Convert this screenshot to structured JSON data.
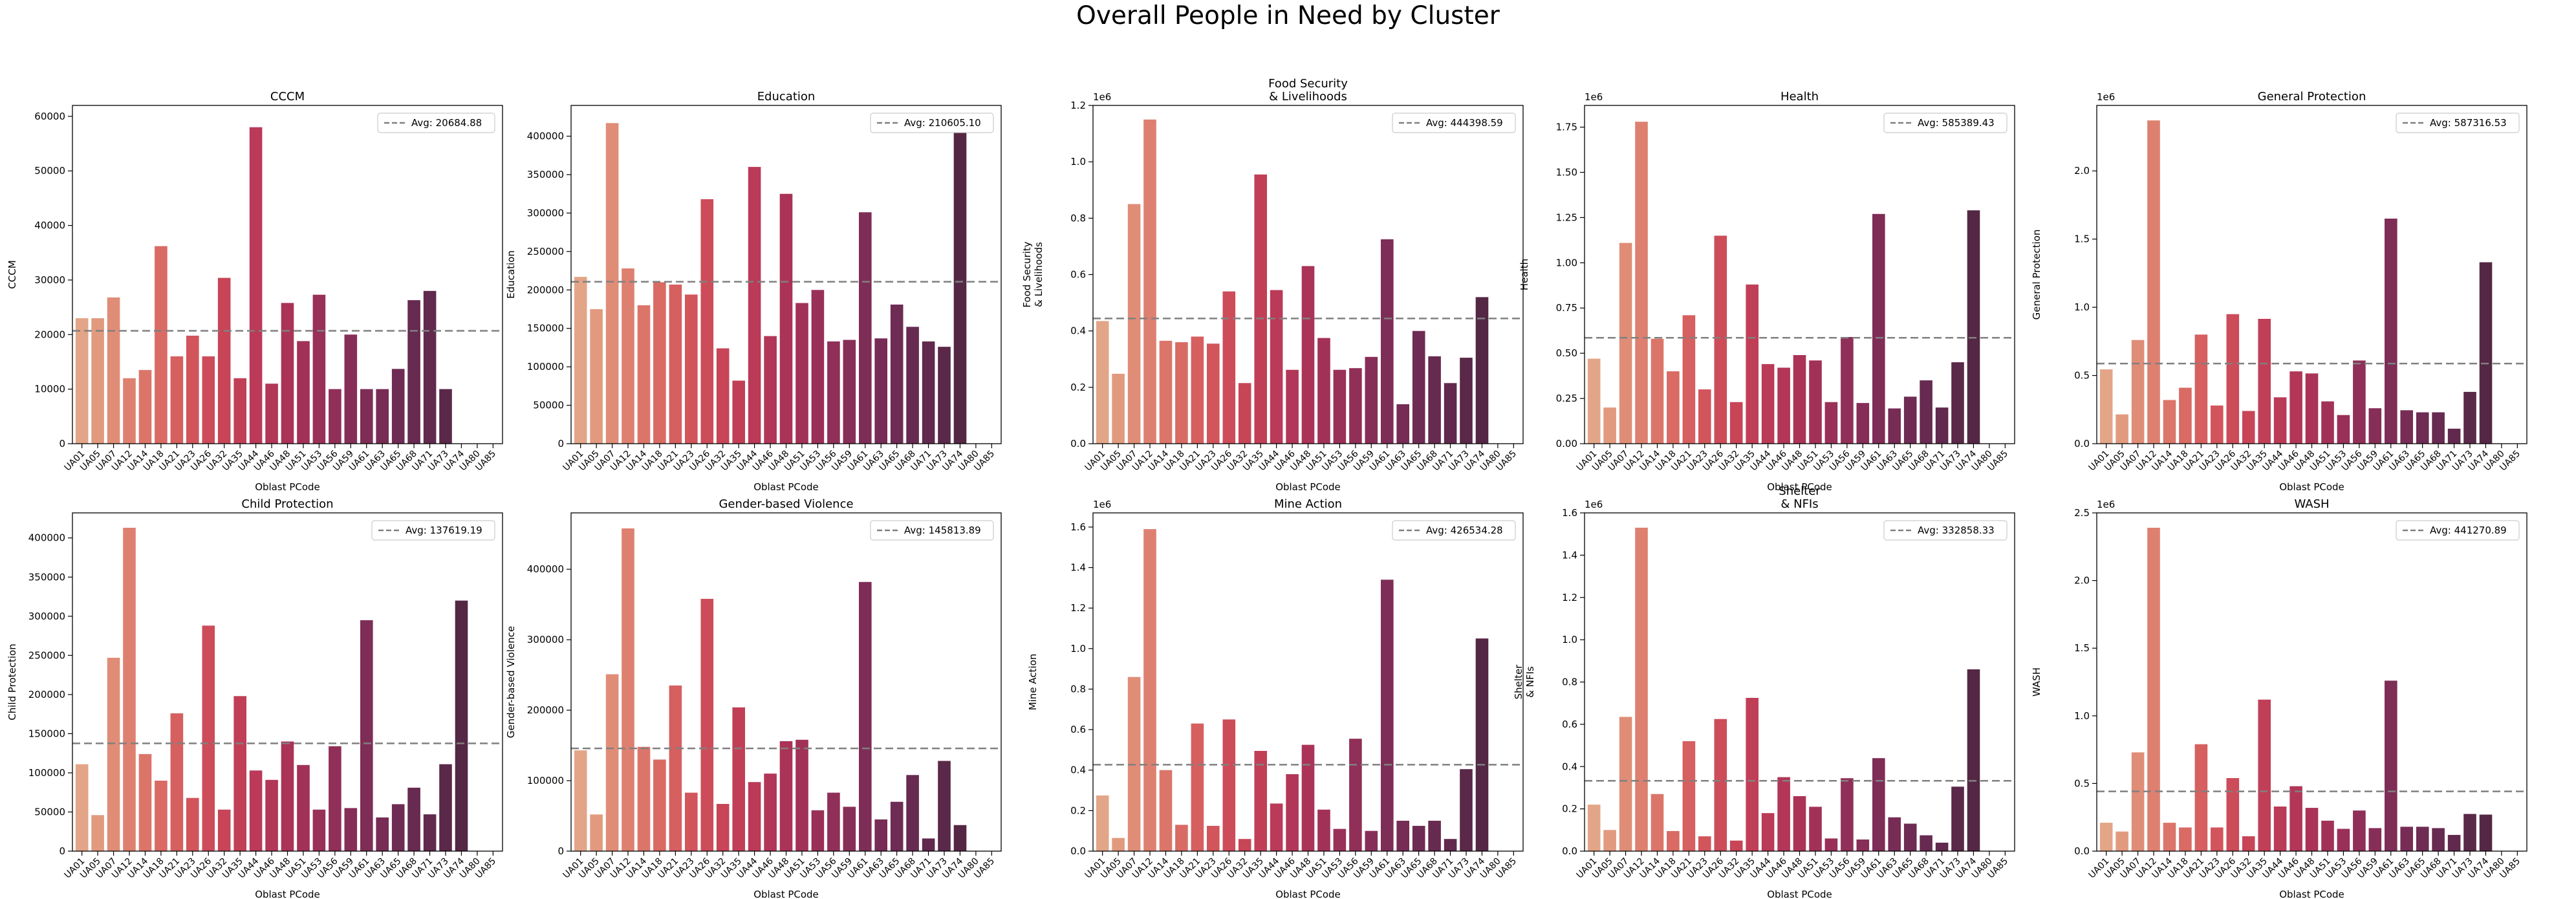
{
  "suptitle": "Overall People in Need by Cluster",
  "x_label": "Oblast PCode",
  "categories": [
    "UA01",
    "UA05",
    "UA07",
    "UA12",
    "UA14",
    "UA18",
    "UA21",
    "UA23",
    "UA26",
    "UA32",
    "UA35",
    "UA44",
    "UA46",
    "UA48",
    "UA51",
    "UA53",
    "UA56",
    "UA59",
    "UA61",
    "UA63",
    "UA65",
    "UA68",
    "UA71",
    "UA73",
    "UA74",
    "UA80",
    "UA85"
  ],
  "palette": [
    "#e3a587",
    "#e29a7f",
    "#e08d77",
    "#de8070",
    "#dc7569",
    "#d96a64",
    "#d65f5f",
    "#d2555b",
    "#cd4c59",
    "#c74557",
    "#c13f56",
    "#ba3a57",
    "#b23657",
    "#aa3357",
    "#a23158",
    "#993058",
    "#902f58",
    "#872e58",
    "#7e2d57",
    "#762c55",
    "#6e2b53",
    "#672a50",
    "#60294d",
    "#5a2849",
    "#542745",
    "#4f2641",
    "#4a253d"
  ],
  "chart_data": [
    {
      "type": "bar",
      "title": "CCCM",
      "xlabel": "Oblast PCode",
      "ylabel": "CCCM",
      "ylim": [
        0,
        62000
      ],
      "scale": "1",
      "yticks": [
        "0",
        "10000",
        "20000",
        "30000",
        "40000",
        "50000",
        "60000"
      ],
      "tickvals": [
        0,
        10000,
        20000,
        30000,
        40000,
        50000,
        60000
      ],
      "avg": 20684.88,
      "legend": "Avg: 20684.88",
      "values": [
        23000,
        23000,
        26800,
        12000,
        13500,
        36200,
        16000,
        19800,
        16000,
        30400,
        12000,
        58000,
        11000,
        25800,
        18800,
        27300,
        10000,
        20000,
        10000,
        10000,
        13700,
        26300,
        28000,
        10000,
        0,
        0,
        0
      ]
    },
    {
      "type": "bar",
      "title": "Education",
      "xlabel": "Oblast PCode",
      "ylabel": "Education",
      "ylim": [
        0,
        440000
      ],
      "scale": "1",
      "yticks": [
        "0",
        "50000",
        "100000",
        "150000",
        "200000",
        "250000",
        "300000",
        "350000",
        "400000"
      ],
      "tickvals": [
        0,
        50000,
        100000,
        150000,
        200000,
        250000,
        300000,
        350000,
        400000
      ],
      "avg": 210605.1,
      "legend": "Avg: 210605.10",
      "values": [
        217000,
        175000,
        417000,
        228000,
        180000,
        210000,
        207000,
        194000,
        318000,
        124000,
        82000,
        360000,
        140000,
        325000,
        183000,
        200000,
        133000,
        135000,
        301000,
        137000,
        181000,
        152000,
        133000,
        126000,
        418000,
        0,
        0
      ]
    },
    {
      "type": "bar",
      "title": "Food Security\n& Livelihoods",
      "xlabel": "Oblast PCode",
      "ylabel": "Food Security\n& Livelihoods",
      "ylim": [
        0,
        1200000
      ],
      "scale": "1e6",
      "yticks": [
        "0.0",
        "0.2",
        "0.4",
        "0.6",
        "0.8",
        "1.0",
        "1.2"
      ],
      "tickvals": [
        0,
        200000,
        400000,
        600000,
        800000,
        1000000,
        1200000
      ],
      "avg": 444398.59,
      "legend": "Avg: 444398.59",
      "values": [
        435000,
        248000,
        850000,
        1150000,
        365000,
        360000,
        380000,
        355000,
        540000,
        215000,
        955000,
        545000,
        262000,
        630000,
        375000,
        262000,
        268000,
        308000,
        725000,
        140000,
        400000,
        310000,
        215000,
        305000,
        520000,
        0,
        0
      ]
    },
    {
      "type": "bar",
      "title": "Health",
      "xlabel": "Oblast PCode",
      "ylabel": "Health",
      "ylim": [
        0,
        1870000
      ],
      "scale": "1e6",
      "yticks": [
        "0.00",
        "0.25",
        "0.50",
        "0.75",
        "1.00",
        "1.25",
        "1.50",
        "1.75"
      ],
      "tickvals": [
        0,
        250000,
        500000,
        750000,
        1000000,
        1250000,
        1500000,
        1750000
      ],
      "avg": 585389.43,
      "legend": "Avg: 585389.43",
      "values": [
        470000,
        200000,
        1110000,
        1780000,
        580000,
        400000,
        710000,
        300000,
        1150000,
        230000,
        880000,
        440000,
        420000,
        490000,
        460000,
        230000,
        590000,
        225000,
        1270000,
        195000,
        260000,
        350000,
        200000,
        450000,
        1290000,
        0,
        0
      ]
    },
    {
      "type": "bar",
      "title": "General Protection",
      "xlabel": "Oblast PCode",
      "ylabel": "General Protection",
      "ylim": [
        0,
        2480000
      ],
      "scale": "1e6",
      "yticks": [
        "0.0",
        "0.5",
        "1.0",
        "1.5",
        "2.0"
      ],
      "tickvals": [
        0,
        500000,
        1000000,
        1500000,
        2000000
      ],
      "avg": 587316.53,
      "legend": "Avg: 587316.53",
      "values": [
        545000,
        215000,
        760000,
        2370000,
        320000,
        410000,
        800000,
        280000,
        950000,
        240000,
        915000,
        340000,
        530000,
        515000,
        310000,
        210000,
        610000,
        260000,
        1650000,
        245000,
        230000,
        230000,
        110000,
        380000,
        1330000,
        0,
        0
      ]
    },
    {
      "type": "bar",
      "title": "Child Protection",
      "xlabel": "Oblast PCode",
      "ylabel": "Child Protection",
      "ylim": [
        0,
        432000
      ],
      "scale": "1",
      "yticks": [
        "0",
        "50000",
        "100000",
        "150000",
        "200000",
        "250000",
        "300000",
        "350000",
        "400000"
      ],
      "tickvals": [
        0,
        50000,
        100000,
        150000,
        200000,
        250000,
        300000,
        350000,
        400000
      ],
      "avg": 137619.19,
      "legend": "Avg: 137619.19",
      "values": [
        111000,
        46000,
        247000,
        413000,
        124000,
        90000,
        176000,
        68000,
        288000,
        53000,
        198000,
        103000,
        91000,
        140000,
        110000,
        53000,
        134000,
        55000,
        295000,
        43000,
        60000,
        81000,
        47000,
        111000,
        320000,
        0,
        0
      ]
    },
    {
      "type": "bar",
      "title": "Gender-based Violence",
      "xlabel": "Oblast PCode",
      "ylabel": "Gender-based Violence",
      "ylim": [
        0,
        480000
      ],
      "scale": "1",
      "yticks": [
        "0",
        "100000",
        "200000",
        "300000",
        "400000"
      ],
      "tickvals": [
        0,
        100000,
        200000,
        300000,
        400000
      ],
      "avg": 145813.89,
      "legend": "Avg: 145813.89",
      "values": [
        143000,
        52000,
        251000,
        458000,
        148000,
        130000,
        235000,
        83000,
        358000,
        67000,
        204000,
        98000,
        110000,
        156000,
        158000,
        58000,
        83000,
        63000,
        382000,
        45000,
        70000,
        108000,
        18000,
        128000,
        37000,
        0,
        0
      ]
    },
    {
      "type": "bar",
      "title": "Mine Action",
      "xlabel": "Oblast PCode",
      "ylabel": "Mine Action",
      "ylim": [
        0,
        1670000
      ],
      "scale": "1e6",
      "yticks": [
        "0.0",
        "0.2",
        "0.4",
        "0.6",
        "0.8",
        "1.0",
        "1.2",
        "1.4",
        "1.6"
      ],
      "tickvals": [
        0,
        200000,
        400000,
        600000,
        800000,
        1000000,
        1200000,
        1400000,
        1600000
      ],
      "avg": 426534.28,
      "legend": "Avg: 426534.28",
      "values": [
        275000,
        65000,
        860000,
        1590000,
        400000,
        130000,
        630000,
        125000,
        650000,
        60000,
        495000,
        235000,
        380000,
        525000,
        205000,
        110000,
        555000,
        100000,
        1340000,
        150000,
        125000,
        150000,
        60000,
        405000,
        1050000,
        0,
        0
      ]
    },
    {
      "type": "bar",
      "title": "Shelter\n& NFIs",
      "xlabel": "Oblast PCode",
      "ylabel": "Shelter\n& NFIs",
      "ylim": [
        0,
        1600000
      ],
      "scale": "1e6",
      "yticks": [
        "0.0",
        "0.2",
        "0.4",
        "0.6",
        "0.8",
        "1.0",
        "1.2",
        "1.4",
        "1.6"
      ],
      "tickvals": [
        0,
        200000,
        400000,
        600000,
        800000,
        1000000,
        1200000,
        1400000,
        1600000
      ],
      "avg": 332858.33,
      "legend": "Avg: 332858.33",
      "values": [
        220000,
        100000,
        635000,
        1530000,
        270000,
        95000,
        520000,
        70000,
        625000,
        50000,
        725000,
        180000,
        350000,
        260000,
        210000,
        60000,
        345000,
        55000,
        440000,
        160000,
        130000,
        75000,
        40000,
        305000,
        860000,
        0,
        0
      ]
    },
    {
      "type": "bar",
      "title": "WASH",
      "xlabel": "Oblast PCode",
      "ylabel": "WASH",
      "ylim": [
        0,
        2500000
      ],
      "scale": "1e6",
      "yticks": [
        "0.0",
        "0.5",
        "1.0",
        "1.5",
        "2.0",
        "2.5"
      ],
      "tickvals": [
        0,
        500000,
        1000000,
        1500000,
        2000000,
        2500000
      ],
      "avg": 441270.89,
      "legend": "Avg: 441270.89",
      "values": [
        210000,
        145000,
        730000,
        2390000,
        210000,
        175000,
        790000,
        175000,
        540000,
        110000,
        1120000,
        330000,
        480000,
        320000,
        225000,
        165000,
        300000,
        170000,
        1260000,
        180000,
        180000,
        170000,
        120000,
        275000,
        270000,
        0,
        0
      ]
    }
  ]
}
